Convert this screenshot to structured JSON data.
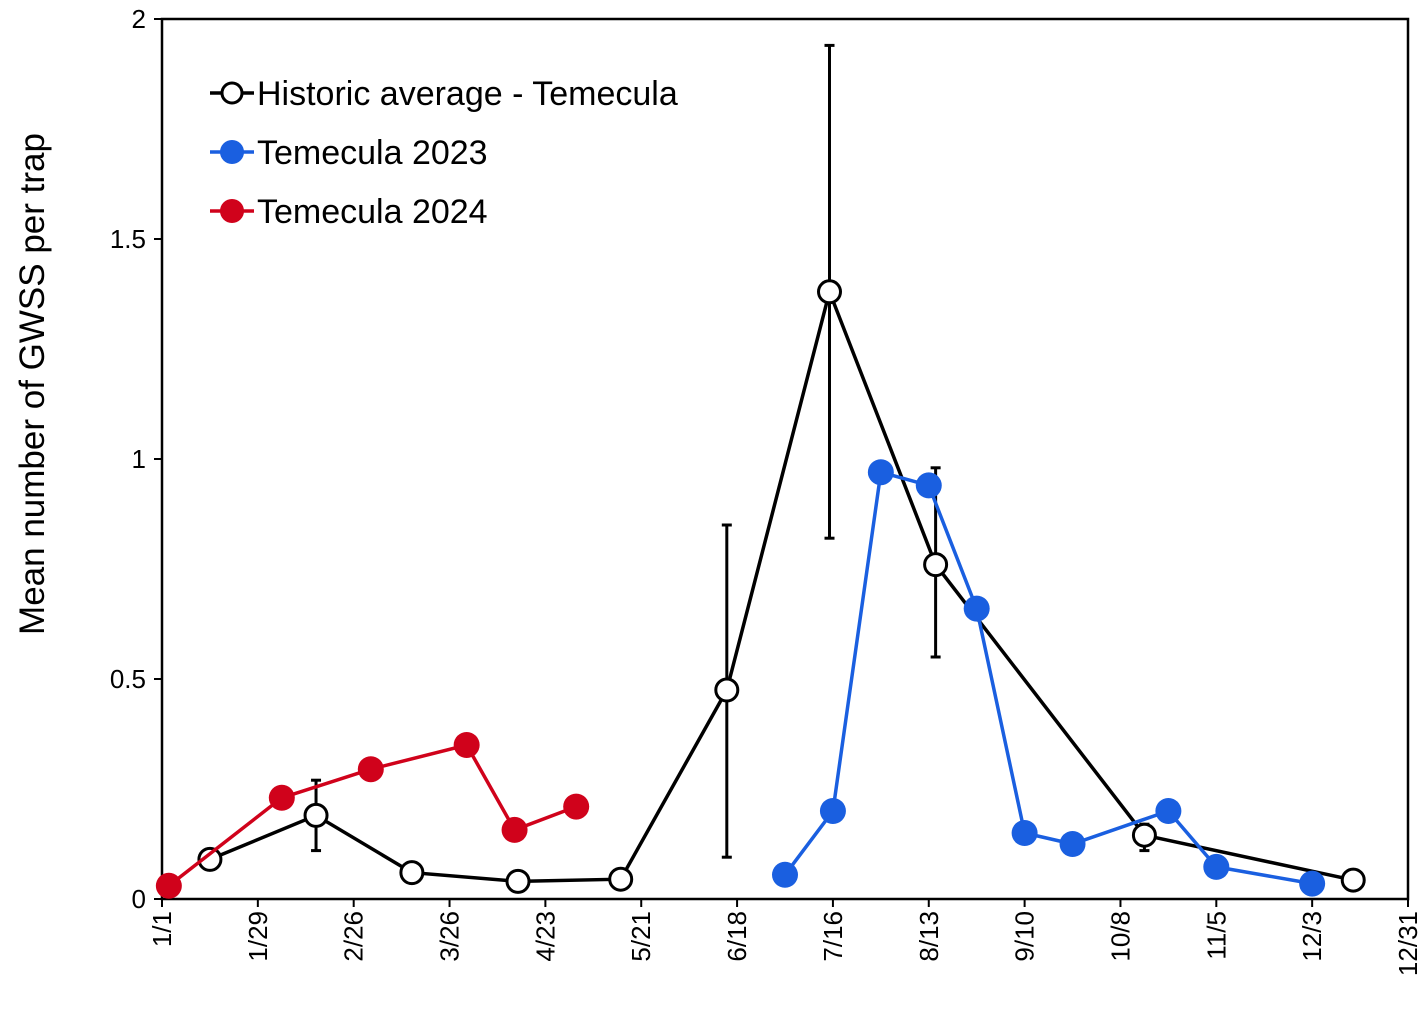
{
  "chart_data": {
    "type": "line",
    "title": "",
    "xlabel": "",
    "ylabel": "Mean number of GWSS per trap",
    "ylim": [
      0,
      2
    ],
    "yticks": [
      "0",
      "0.5",
      "1",
      "1.5",
      "2"
    ],
    "xlim": [
      "1/1",
      "12/31"
    ],
    "xticks": [
      "1/1",
      "1/29",
      "2/26",
      "3/26",
      "4/23",
      "5/21",
      "6/18",
      "7/16",
      "8/13",
      "9/10",
      "10/8",
      "11/5",
      "12/3",
      "12/31"
    ],
    "grid": false,
    "legend_position": "top-left",
    "series": [
      {
        "name": "Historic average - Temecula",
        "color": "#000000",
        "marker": "open-circle",
        "x": [
          "1/15",
          "2/15",
          "3/15",
          "4/15",
          "5/15",
          "6/15",
          "7/15",
          "8/15",
          "10/15",
          "12/15"
        ],
        "y": [
          0.09,
          0.19,
          0.06,
          0.04,
          0.045,
          0.475,
          1.38,
          0.76,
          0.145,
          0.043
        ],
        "error_low": [
          null,
          0.11,
          null,
          null,
          null,
          0.095,
          0.82,
          0.55,
          0.11,
          null
        ],
        "error_high": [
          null,
          0.27,
          null,
          null,
          null,
          0.85,
          1.94,
          0.98,
          0.17,
          null
        ]
      },
      {
        "name": "Temecula 2023",
        "color": "#1a5fe0",
        "marker": "filled-circle",
        "x": [
          "7/2",
          "7/16",
          "7/30",
          "8/13",
          "8/27",
          "9/10",
          "9/24",
          "10/22",
          "11/5",
          "12/3"
        ],
        "y": [
          0.055,
          0.2,
          0.97,
          0.94,
          0.66,
          0.15,
          0.125,
          0.2,
          0.073,
          0.035
        ]
      },
      {
        "name": "Temecula 2024",
        "color": "#d0021b",
        "marker": "filled-circle",
        "x": [
          "1/3",
          "2/5",
          "3/3",
          "3/31",
          "4/14",
          "5/2"
        ],
        "y": [
          0.03,
          0.23,
          0.295,
          0.35,
          0.157,
          0.21
        ]
      }
    ]
  }
}
